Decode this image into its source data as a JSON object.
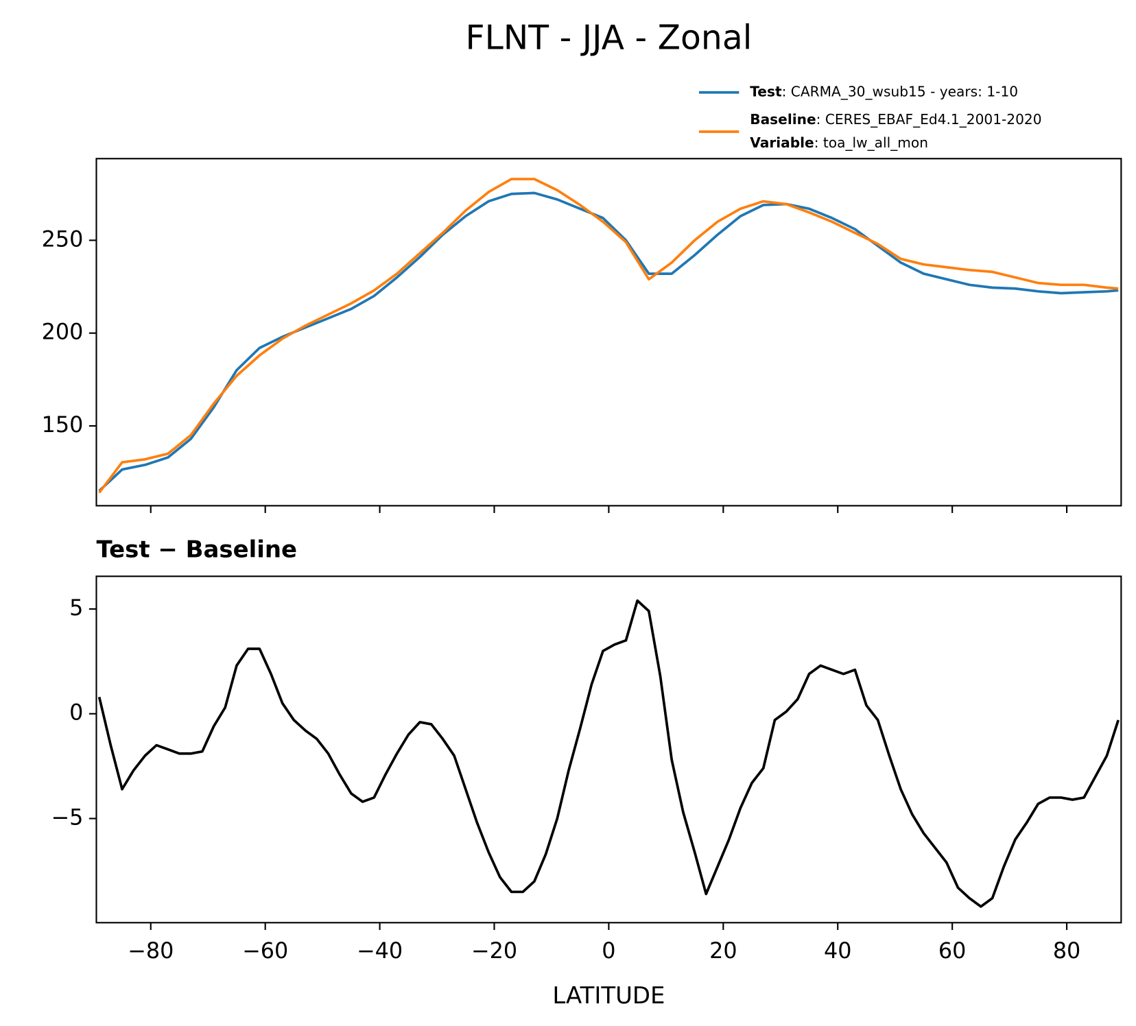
{
  "title": "FLNT - JJA - Zonal",
  "chart_data": [
    {
      "type": "line",
      "xlim": [
        -89.5,
        89.5
      ],
      "ylim": [
        107,
        294
      ],
      "xticks": [
        -80,
        -60,
        -40,
        -20,
        0,
        20,
        40,
        60,
        80
      ],
      "yticks": [
        150,
        200,
        250
      ],
      "legend": "upper right",
      "x": [
        -89,
        -85,
        -81,
        -77,
        -73,
        -69,
        -65,
        -61,
        -57,
        -53,
        -49,
        -45,
        -41,
        -37,
        -33,
        -29,
        -25,
        -21,
        -17,
        -13,
        -9,
        -5,
        -1,
        3,
        7,
        11,
        15,
        19,
        23,
        27,
        31,
        35,
        39,
        43,
        47,
        51,
        55,
        59,
        63,
        67,
        71,
        75,
        79,
        83,
        87,
        89
      ],
      "series": [
        {
          "name": "Test",
          "description": ": CARMA_30_wsub15 - years: 1-10",
          "color": "#1f77b4",
          "values": [
            115,
            126.5,
            129,
            133,
            143,
            160,
            180,
            192,
            198,
            203,
            208,
            213,
            220,
            230,
            241,
            253,
            263,
            271,
            275,
            275.5,
            272,
            267,
            262,
            250,
            232,
            232,
            242,
            253,
            263,
            269,
            269.5,
            267,
            262,
            256,
            247,
            238,
            232,
            229,
            226,
            224.5,
            224,
            222.5,
            221.5,
            222,
            222.5,
            223
          ]
        },
        {
          "name": "Baseline",
          "description": ": CERES_EBAF_Ed4.1_2001-2020",
          "color": "#ff7f0e",
          "values": [
            114,
            130.4,
            132,
            135,
            145,
            162,
            177,
            188,
            197,
            204,
            210,
            216,
            223,
            232,
            243,
            254,
            266,
            276,
            283,
            283,
            277,
            269,
            260,
            249,
            229,
            238,
            250,
            260,
            267,
            271,
            269.5,
            265,
            260,
            254,
            248,
            240,
            237,
            235.5,
            234,
            233,
            230,
            227,
            226,
            226,
            224.5,
            224
          ]
        }
      ],
      "legend_extra": {
        "name": "Variable",
        "description": ": toa_lw_all_mon"
      }
    },
    {
      "type": "line",
      "title": "Test − Baseline",
      "xlabel": "LATITUDE",
      "xlim": [
        -89.5,
        89.5
      ],
      "ylim": [
        -9.97,
        6.56
      ],
      "xticks": [
        {
          "value": -80,
          "label": "−80"
        },
        {
          "value": -60,
          "label": "−60"
        },
        {
          "value": -40,
          "label": "−40"
        },
        {
          "value": -20,
          "label": "−20"
        },
        0,
        20,
        40,
        60,
        80
      ],
      "yticks": [
        {
          "value": -5,
          "label": "−5"
        },
        0,
        5
      ],
      "x": [
        -89,
        -87,
        -85,
        -83,
        -81,
        -79,
        -77,
        -75,
        -73,
        -71,
        -69,
        -67,
        -65,
        -63,
        -61,
        -59,
        -57,
        -55,
        -53,
        -51,
        -49,
        -47,
        -45,
        -43,
        -41,
        -39,
        -37,
        -35,
        -33,
        -31,
        -29,
        -27,
        -25,
        -23,
        -21,
        -19,
        -17,
        -15,
        -13,
        -11,
        -9,
        -7,
        -5,
        -3,
        -1,
        1,
        3,
        5,
        7,
        9,
        11,
        13,
        15,
        17,
        19,
        21,
        23,
        25,
        27,
        29,
        31,
        33,
        35,
        37,
        39,
        41,
        43,
        45,
        47,
        49,
        51,
        53,
        55,
        57,
        59,
        61,
        63,
        65,
        67,
        69,
        71,
        73,
        75,
        77,
        79,
        81,
        83,
        85,
        87,
        89
      ],
      "series": [
        {
          "color": "#000000",
          "values": [
            0.8,
            -1.5,
            -3.6,
            -2.7,
            -2.0,
            -1.5,
            -1.7,
            -1.9,
            -1.9,
            -1.8,
            -0.6,
            0.3,
            2.3,
            3.1,
            3.1,
            1.9,
            0.5,
            -0.3,
            -0.8,
            -1.2,
            -1.9,
            -2.9,
            -3.8,
            -4.2,
            -4.0,
            -2.9,
            -1.9,
            -1.0,
            -0.4,
            -0.5,
            -1.2,
            -2.0,
            -3.6,
            -5.2,
            -6.6,
            -7.8,
            -8.5,
            -8.5,
            -8.0,
            -6.7,
            -5.0,
            -2.7,
            -0.7,
            1.4,
            3.0,
            3.3,
            3.5,
            5.4,
            4.9,
            1.8,
            -2.2,
            -4.7,
            -6.6,
            -8.6,
            -7.3,
            -6.0,
            -4.5,
            -3.3,
            -2.6,
            -0.3,
            0.1,
            0.7,
            1.9,
            2.3,
            2.1,
            1.9,
            2.1,
            0.4,
            -0.3,
            -2.0,
            -3.6,
            -4.8,
            -5.7,
            -6.4,
            -7.1,
            -8.3,
            -8.8,
            -9.2,
            -8.8,
            -7.3,
            -6.0,
            -5.2,
            -4.3,
            -4.0,
            -4.0,
            -4.1,
            -4.0,
            -3.0,
            -2.0,
            -0.3
          ]
        }
      ]
    }
  ]
}
